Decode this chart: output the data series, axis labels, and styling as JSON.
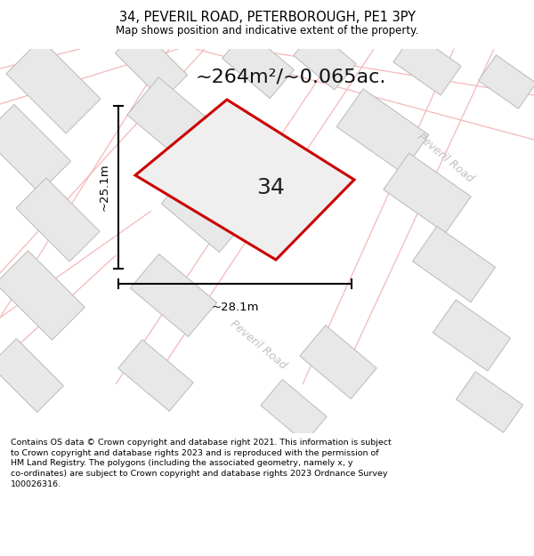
{
  "title": "34, PEVERIL ROAD, PETERBOROUGH, PE1 3PY",
  "subtitle": "Map shows position and indicative extent of the property.",
  "area_text": "~264m²/~0.065ac.",
  "width_label": "~28.1m",
  "height_label": "~25.1m",
  "property_number": "34",
  "road_label_right": "Peveril Road",
  "road_label_bottom": "Peveril Road",
  "footer_text": "Contains OS data © Crown copyright and database right 2021. This information is subject to Crown copyright and database rights 2023 and is reproduced with the permission of HM Land Registry. The polygons (including the associated geometry, namely x, y co-ordinates) are subject to Crown copyright and database rights 2023 Ordnance Survey 100026316.",
  "bg_color": "#f7f7f7",
  "plot_border_color": "#cc0000",
  "building_fill_color": "#e8e8e8",
  "building_border_color": "#c0c0c0",
  "road_line_color": "#f5b8b8",
  "road_label_color": "#c0c0c0",
  "figsize": [
    6.0,
    6.25
  ],
  "dpi": 100
}
